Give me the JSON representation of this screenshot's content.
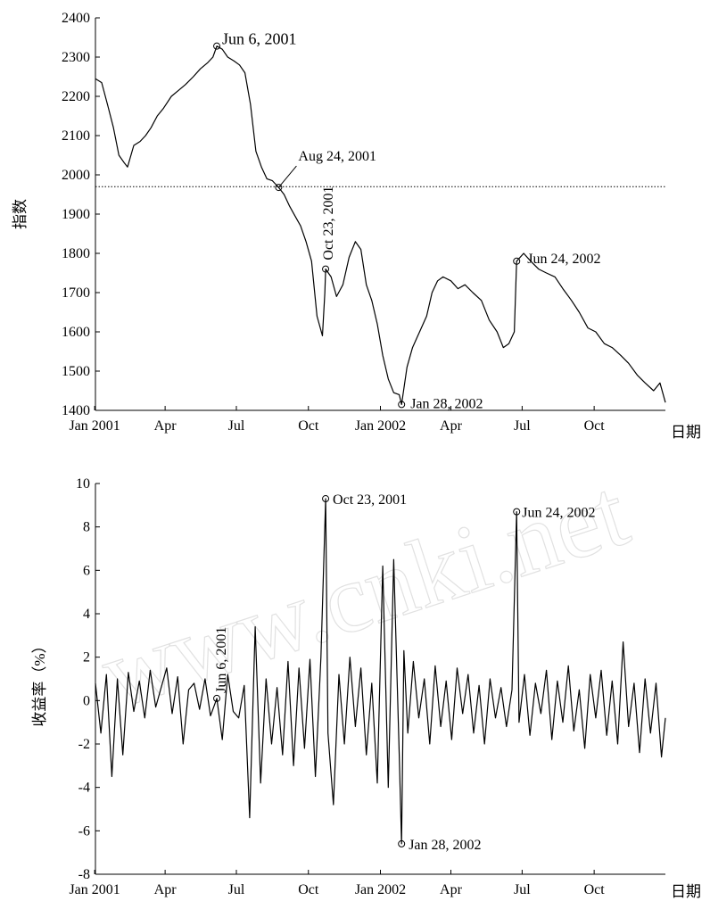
{
  "watermark": "www.cnki.net",
  "chart_data": [
    {
      "type": "line",
      "title": "",
      "xlabel": "日期",
      "ylabel": "指数",
      "xlim": [
        "2001-01-02",
        "2002-12-31"
      ],
      "ylim": [
        1400,
        2400
      ],
      "x_ticks": [
        {
          "label": "Jan 2001",
          "date": "2001-01-01"
        },
        {
          "label": "Apr",
          "date": "2001-04-01"
        },
        {
          "label": "Jul",
          "date": "2001-07-01"
        },
        {
          "label": "Oct",
          "date": "2001-10-01"
        },
        {
          "label": "Jan 2002",
          "date": "2002-01-01"
        },
        {
          "label": "Apr",
          "date": "2002-04-01"
        },
        {
          "label": "Jul",
          "date": "2002-07-01"
        },
        {
          "label": "Oct",
          "date": "2002-10-01"
        }
      ],
      "y_ticks": [
        1400,
        1500,
        1600,
        1700,
        1800,
        1900,
        2000,
        2100,
        2200,
        2300,
        2400
      ],
      "reference_line": {
        "y": 1970,
        "style": "dotted"
      },
      "series": [
        {
          "x": [
            "2001-01-02",
            "2001-01-10",
            "2001-01-18",
            "2001-01-25",
            "2001-02-01",
            "2001-02-08",
            "2001-02-12",
            "2001-02-20",
            "2001-02-28",
            "2001-03-07",
            "2001-03-14",
            "2001-03-22",
            "2001-03-30",
            "2001-04-09",
            "2001-04-18",
            "2001-04-27",
            "2001-05-07",
            "2001-05-16",
            "2001-05-25",
            "2001-06-01",
            "2001-06-06",
            "2001-06-13",
            "2001-06-20",
            "2001-06-28",
            "2001-07-05",
            "2001-07-12",
            "2001-07-19",
            "2001-07-26",
            "2001-08-02",
            "2001-08-09",
            "2001-08-16",
            "2001-08-24",
            "2001-08-31",
            "2001-09-07",
            "2001-09-14",
            "2001-09-21",
            "2001-09-28",
            "2001-10-05",
            "2001-10-12",
            "2001-10-19",
            "2001-10-22",
            "2001-10-23",
            "2001-10-30",
            "2001-11-06",
            "2001-11-14",
            "2001-11-22",
            "2001-11-30",
            "2001-12-07",
            "2001-12-14",
            "2001-12-21",
            "2001-12-28",
            "2002-01-04",
            "2002-01-11",
            "2002-01-18",
            "2002-01-25",
            "2002-01-28",
            "2002-02-04",
            "2002-02-11",
            "2002-02-20",
            "2002-03-01",
            "2002-03-08",
            "2002-03-15",
            "2002-03-22",
            "2002-04-01",
            "2002-04-10",
            "2002-04-19",
            "2002-04-29",
            "2002-05-10",
            "2002-05-20",
            "2002-05-30",
            "2002-06-07",
            "2002-06-14",
            "2002-06-21",
            "2002-06-24",
            "2002-07-03",
            "2002-07-12",
            "2002-07-22",
            "2002-08-01",
            "2002-08-12",
            "2002-08-22",
            "2002-09-02",
            "2002-09-12",
            "2002-09-23",
            "2002-10-03",
            "2002-10-14",
            "2002-10-24",
            "2002-11-04",
            "2002-11-14",
            "2002-11-25",
            "2002-12-05",
            "2002-12-16",
            "2002-12-24",
            "2002-12-31"
          ],
          "y": [
            2245,
            2235,
            2175,
            2120,
            2050,
            2030,
            2020,
            2075,
            2085,
            2100,
            2120,
            2150,
            2170,
            2200,
            2215,
            2230,
            2250,
            2270,
            2285,
            2300,
            2328,
            2320,
            2300,
            2290,
            2280,
            2260,
            2180,
            2060,
            2020,
            1990,
            1985,
            1968,
            1950,
            1920,
            1895,
            1870,
            1830,
            1780,
            1640,
            1590,
            1700,
            1760,
            1740,
            1690,
            1720,
            1790,
            1830,
            1810,
            1720,
            1680,
            1620,
            1540,
            1480,
            1445,
            1440,
            1415,
            1510,
            1560,
            1600,
            1640,
            1700,
            1730,
            1740,
            1730,
            1710,
            1720,
            1700,
            1680,
            1630,
            1600,
            1560,
            1570,
            1600,
            1780,
            1800,
            1780,
            1760,
            1750,
            1740,
            1710,
            1680,
            1650,
            1610,
            1600,
            1570,
            1560,
            1540,
            1520,
            1490,
            1470,
            1450,
            1470,
            1420
          ]
        }
      ],
      "annotations": [
        {
          "text": "Jun 6, 2001",
          "x": "2001-06-06",
          "y": 2328
        },
        {
          "text": "Aug 24, 2001",
          "x": "2001-08-24",
          "y": 1968
        },
        {
          "text": "Oct 23, 2001",
          "x": "2001-10-23",
          "y": 1760
        },
        {
          "text": "Jan 28, 2002",
          "x": "2002-01-28",
          "y": 1415
        },
        {
          "text": "Jun 24, 2002",
          "x": "2002-06-24",
          "y": 1780
        }
      ]
    },
    {
      "type": "line",
      "title": "",
      "xlabel": "日期",
      "ylabel": "收益率（%）",
      "xlim": [
        "2001-01-02",
        "2002-12-31"
      ],
      "ylim": [
        -8,
        10
      ],
      "x_ticks": [
        {
          "label": "Jan 2001",
          "date": "2001-01-01"
        },
        {
          "label": "Apr",
          "date": "2001-04-01"
        },
        {
          "label": "Jul",
          "date": "2001-07-01"
        },
        {
          "label": "Oct",
          "date": "2001-10-01"
        },
        {
          "label": "Jan 2002",
          "date": "2002-01-01"
        },
        {
          "label": "Apr",
          "date": "2002-04-01"
        },
        {
          "label": "Jul",
          "date": "2002-07-01"
        },
        {
          "label": "Oct",
          "date": "2002-10-01"
        }
      ],
      "y_ticks": [
        -8,
        -6,
        -4,
        -2,
        0,
        2,
        4,
        6,
        8,
        10
      ],
      "series": [
        {
          "x": [
            "2001-01-02",
            "2001-01-09",
            "2001-01-16",
            "2001-01-23",
            "2001-01-30",
            "2001-02-06",
            "2001-02-13",
            "2001-02-20",
            "2001-02-27",
            "2001-03-06",
            "2001-03-13",
            "2001-03-20",
            "2001-03-27",
            "2001-04-03",
            "2001-04-10",
            "2001-04-17",
            "2001-04-24",
            "2001-05-01",
            "2001-05-08",
            "2001-05-15",
            "2001-05-22",
            "2001-05-29",
            "2001-06-06",
            "2001-06-13",
            "2001-06-20",
            "2001-06-27",
            "2001-07-04",
            "2001-07-11",
            "2001-07-18",
            "2001-07-25",
            "2001-08-01",
            "2001-08-08",
            "2001-08-15",
            "2001-08-22",
            "2001-08-29",
            "2001-09-05",
            "2001-09-12",
            "2001-09-19",
            "2001-09-26",
            "2001-10-03",
            "2001-10-10",
            "2001-10-17",
            "2001-10-23",
            "2001-10-26",
            "2001-11-02",
            "2001-11-09",
            "2001-11-16",
            "2001-11-23",
            "2001-11-30",
            "2001-12-07",
            "2001-12-14",
            "2001-12-21",
            "2001-12-28",
            "2002-01-04",
            "2002-01-11",
            "2002-01-18",
            "2002-01-25",
            "2002-01-28",
            "2002-01-31",
            "2002-02-05",
            "2002-02-12",
            "2002-02-19",
            "2002-02-26",
            "2002-03-05",
            "2002-03-12",
            "2002-03-19",
            "2002-03-26",
            "2002-04-02",
            "2002-04-09",
            "2002-04-16",
            "2002-04-23",
            "2002-04-30",
            "2002-05-07",
            "2002-05-14",
            "2002-05-21",
            "2002-05-28",
            "2002-06-04",
            "2002-06-11",
            "2002-06-18",
            "2002-06-24",
            "2002-06-27",
            "2002-07-04",
            "2002-07-11",
            "2002-07-18",
            "2002-07-25",
            "2002-08-01",
            "2002-08-08",
            "2002-08-15",
            "2002-08-22",
            "2002-08-29",
            "2002-09-05",
            "2002-09-12",
            "2002-09-19",
            "2002-09-26",
            "2002-10-03",
            "2002-10-10",
            "2002-10-17",
            "2002-10-24",
            "2002-10-31",
            "2002-11-07",
            "2002-11-14",
            "2002-11-21",
            "2002-11-28",
            "2002-12-05",
            "2002-12-12",
            "2002-12-19",
            "2002-12-26",
            "2002-12-31"
          ],
          "y": [
            0.8,
            -1.5,
            1.2,
            -3.5,
            1.0,
            -2.5,
            1.3,
            -0.5,
            0.9,
            -0.8,
            1.4,
            -0.3,
            0.6,
            1.5,
            -0.6,
            1.1,
            -2.0,
            0.5,
            0.8,
            -0.4,
            1.0,
            -0.7,
            0.1,
            -1.8,
            1.2,
            -0.5,
            -0.8,
            0.7,
            -5.4,
            3.4,
            -3.8,
            1.0,
            -2.0,
            0.6,
            -2.5,
            1.8,
            -3.0,
            1.5,
            -2.2,
            1.9,
            -3.5,
            2.0,
            9.3,
            -1.5,
            -4.8,
            1.2,
            -2.0,
            2.0,
            -1.2,
            1.5,
            -2.5,
            0.8,
            -3.8,
            6.2,
            -4.0,
            6.5,
            -2.5,
            -6.6,
            2.3,
            -1.5,
            1.8,
            -0.8,
            1.0,
            -2.0,
            1.6,
            -1.2,
            0.9,
            -1.8,
            1.5,
            -0.6,
            1.2,
            -1.5,
            0.7,
            -2.0,
            1.0,
            -0.8,
            0.6,
            -1.2,
            0.5,
            8.7,
            -1.0,
            1.2,
            -1.6,
            0.8,
            -0.6,
            1.4,
            -1.8,
            0.9,
            -1.0,
            1.6,
            -1.4,
            0.5,
            -2.2,
            1.2,
            -0.8,
            1.4,
            -1.6,
            0.9,
            -2.0,
            2.7,
            -1.2,
            0.8,
            -2.4,
            1.0,
            -1.5,
            0.8,
            -2.6,
            -0.8
          ]
        }
      ],
      "annotations": [
        {
          "text": "Oct 23, 2001",
          "x": "2001-10-23",
          "y": 9.3
        },
        {
          "text": "Jun 24, 2002",
          "x": "2002-06-24",
          "y": 8.7
        },
        {
          "text": "Jun 6, 2001",
          "x": "2001-06-06",
          "y": 0.1
        },
        {
          "text": "Jan 28, 2002",
          "x": "2002-01-28",
          "y": -6.6
        }
      ]
    }
  ]
}
